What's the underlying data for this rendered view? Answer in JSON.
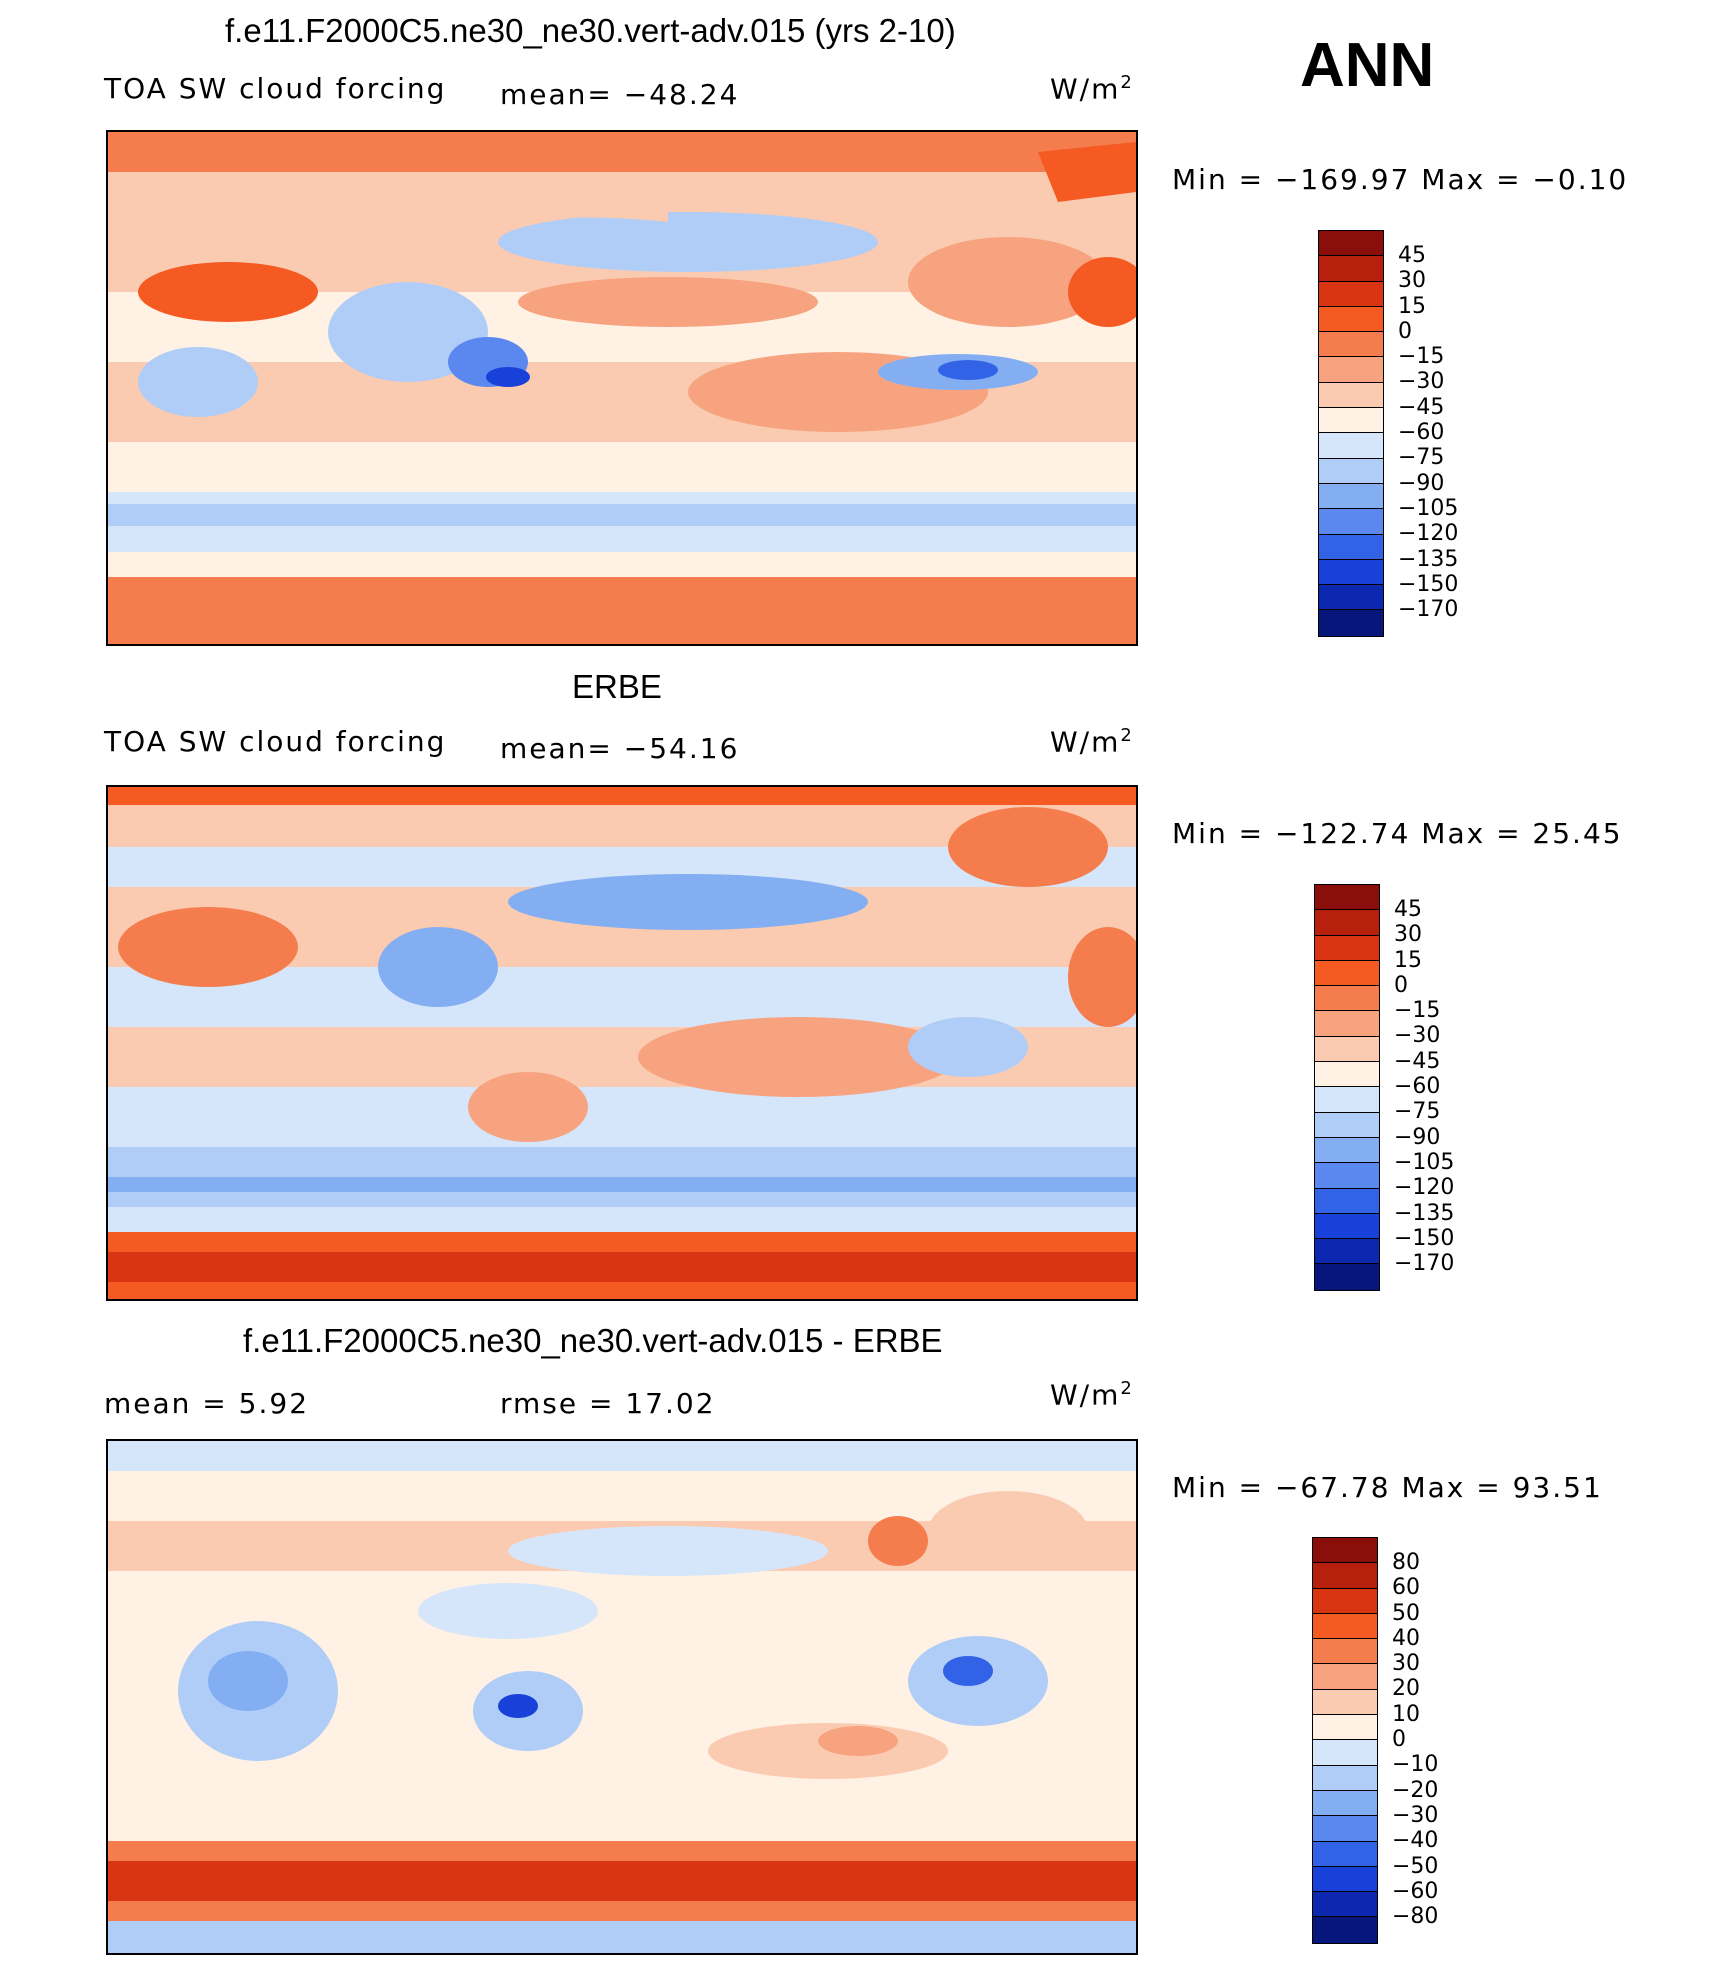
{
  "figure": {
    "season": "ANN",
    "units": "W/m",
    "units_exp": "2"
  },
  "panel1": {
    "title": "f.e11.F2000C5.ne30_ne30.vert-adv.015 (yrs 2-10)",
    "field": "TOA SW cloud forcing",
    "mean_text": "mean= −48.24",
    "minmax_text": "Min  =  −169.97  Max  =    −0.10"
  },
  "panel2": {
    "title": "ERBE",
    "field": "TOA SW cloud forcing",
    "mean_text": "mean= −54.16",
    "minmax_text": "Min  =  −122.74  Max  =    25.45"
  },
  "panel3": {
    "title": "f.e11.F2000C5.ne30_ne30.vert-adv.015 - ERBE",
    "mean_text": "mean  =     5.92",
    "rmse_text": "rmse  =    17.02",
    "minmax_text": "Min  =  −67.78  Max  =    93.51"
  },
  "colorbar_abs": {
    "labels": [
      "45",
      "30",
      "15",
      "0",
      "−15",
      "−30",
      "−45",
      "−60",
      "−75",
      "−90",
      "−105",
      "−120",
      "−135",
      "−150",
      "−170"
    ],
    "colors": [
      "#8a0f0a",
      "#b8200e",
      "#d93512",
      "#f45a22",
      "#f47c4d",
      "#f7a380",
      "#fbcbb1",
      "#fff1e3",
      "#d6e6fa",
      "#b0cdf7",
      "#84aef2",
      "#5a88ef",
      "#3263e6",
      "#1741d8",
      "#0c28b0",
      "#07167a"
    ]
  },
  "colorbar_diff": {
    "labels": [
      "80",
      "60",
      "50",
      "40",
      "30",
      "20",
      "10",
      "0",
      "−10",
      "−20",
      "−30",
      "−40",
      "−50",
      "−60",
      "−80"
    ],
    "colors": [
      "#8a0f0a",
      "#b8200e",
      "#d93512",
      "#f45a22",
      "#f47c4d",
      "#f7a380",
      "#fbcbb1",
      "#fff1e3",
      "#d6e6fa",
      "#b0cdf7",
      "#84aef2",
      "#5a88ef",
      "#3263e6",
      "#1741d8",
      "#0c28b0",
      "#07167a"
    ]
  }
}
